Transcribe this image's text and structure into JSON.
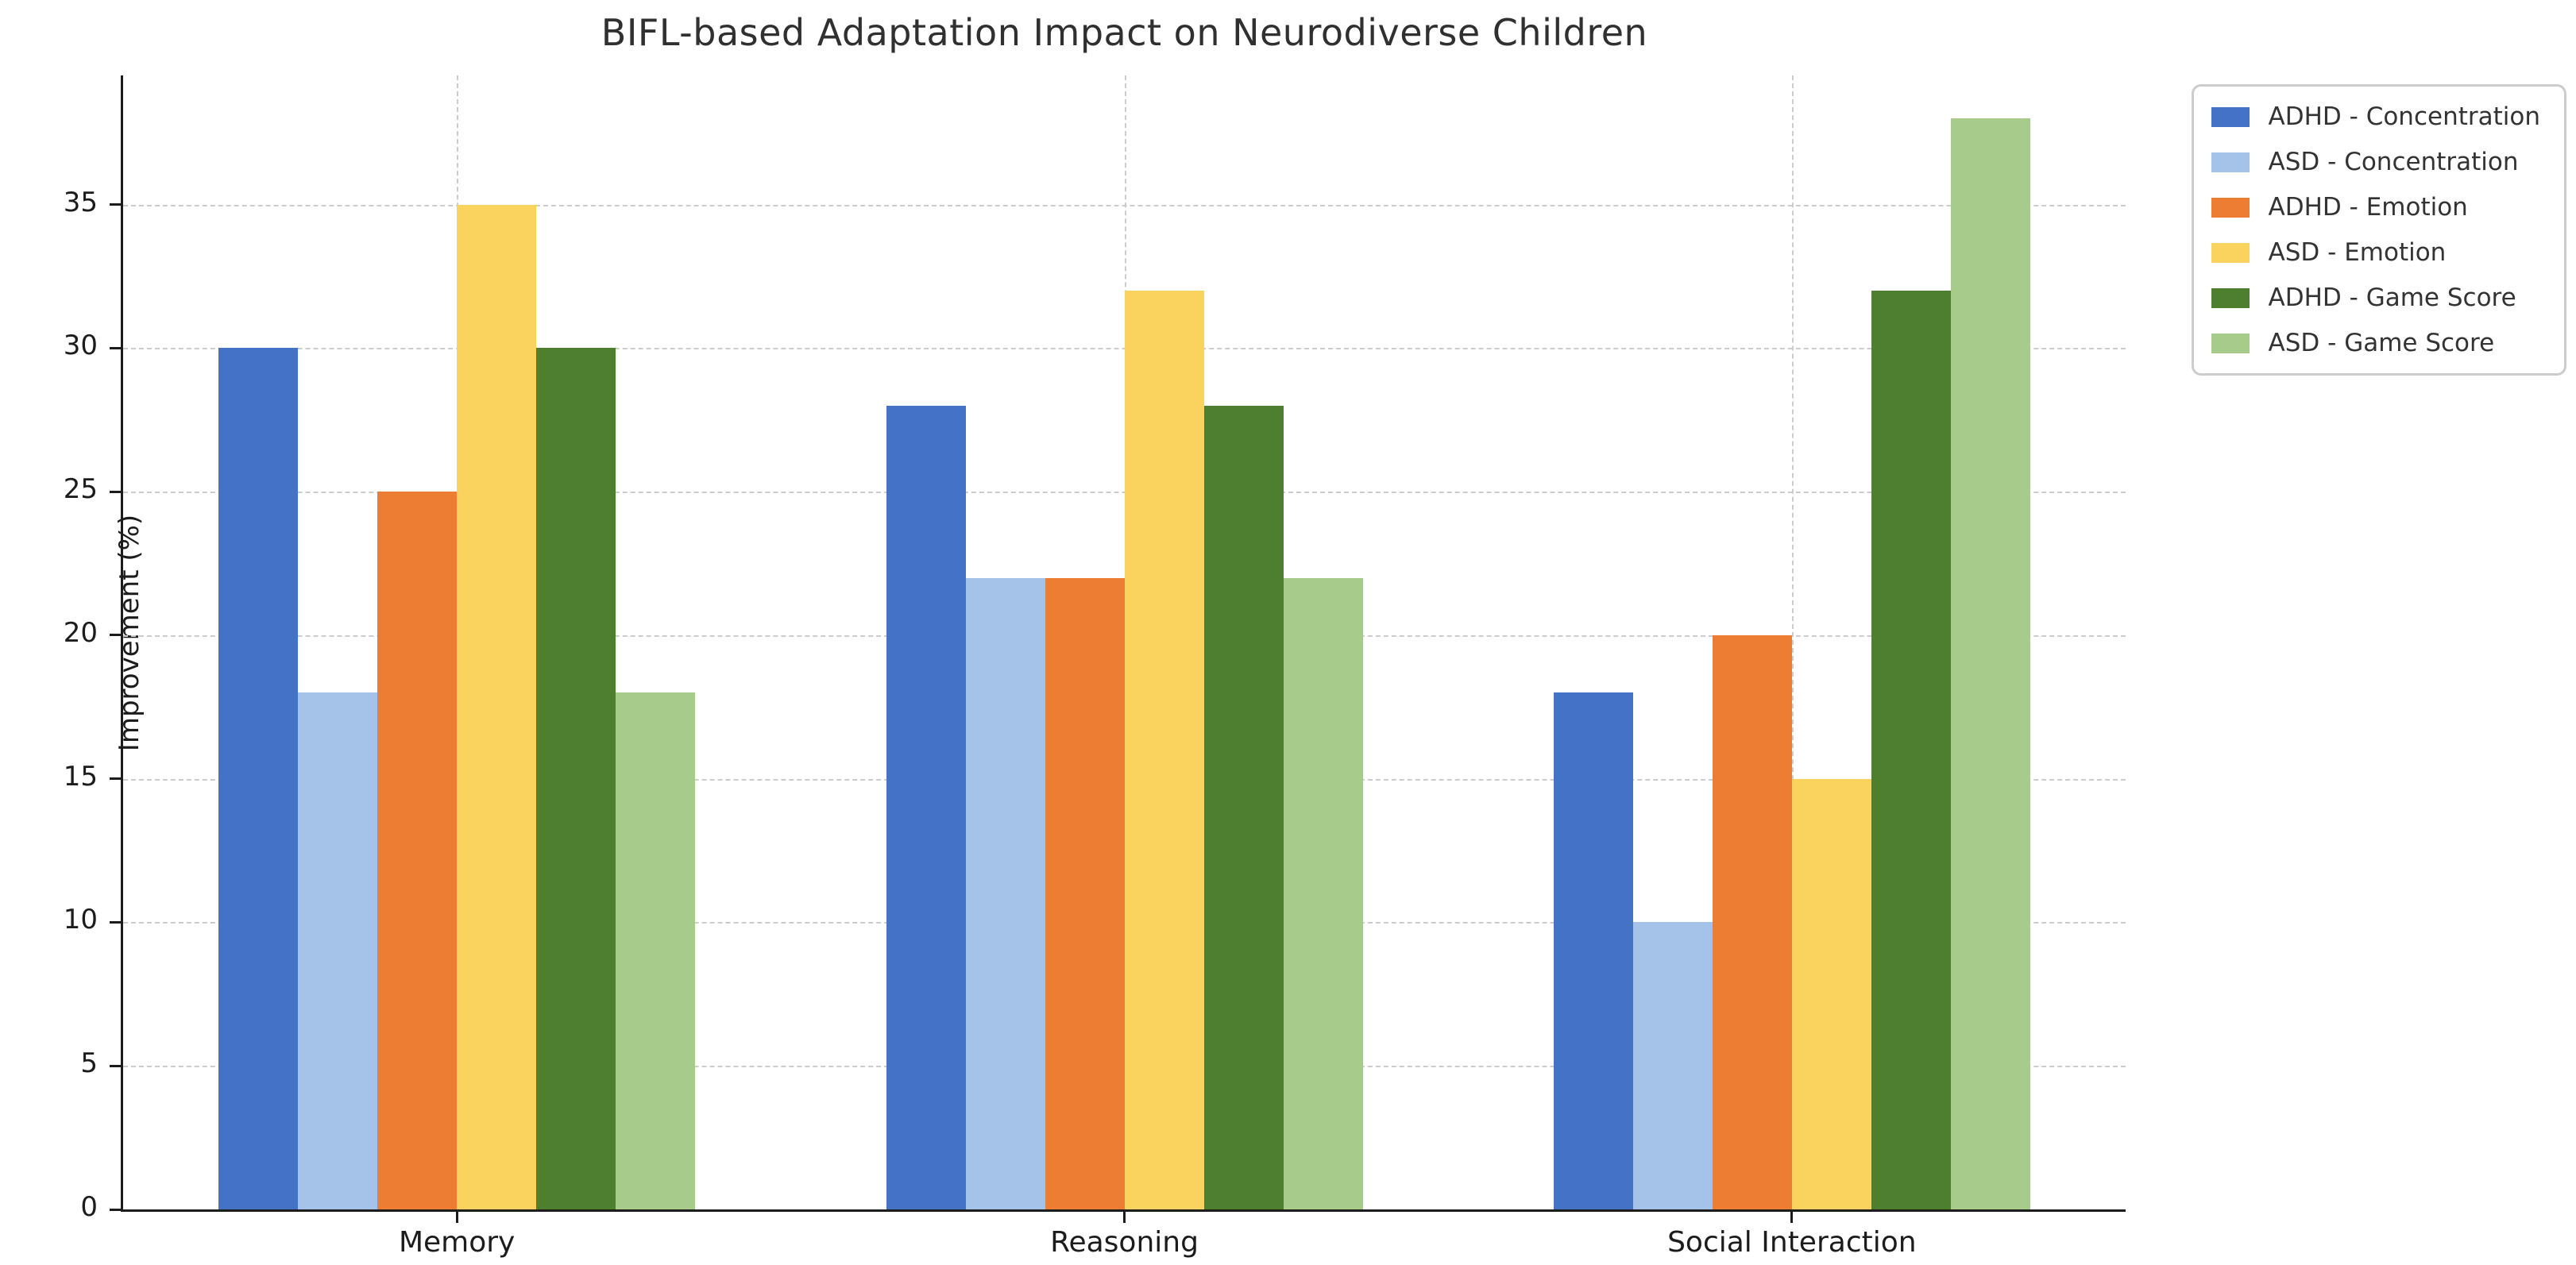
{
  "chart_data": {
    "type": "bar",
    "title": "BIFL-based Adaptation Impact on Neurodiverse Children",
    "xlabel": "",
    "ylabel": "Improvement (%)",
    "categories": [
      "Memory",
      "Reasoning",
      "Social Interaction"
    ],
    "series": [
      {
        "name": "ADHD - Concentration",
        "color": "#4473C5",
        "values": [
          30,
          28,
          18
        ]
      },
      {
        "name": "ASD - Concentration",
        "color": "#A5C3E9",
        "values": [
          18,
          22,
          10
        ]
      },
      {
        "name": "ADHD - Emotion",
        "color": "#EC7D33",
        "values": [
          25,
          22,
          20
        ]
      },
      {
        "name": "ASD - Emotion",
        "color": "#FAD35E",
        "values": [
          35,
          32,
          15
        ]
      },
      {
        "name": "ADHD - Game Score",
        "color": "#4D7F2F",
        "values": [
          30,
          28,
          32
        ]
      },
      {
        "name": "ASD - Game Score",
        "color": "#A7CB8B",
        "values": [
          18,
          22,
          38
        ]
      }
    ],
    "yticks": [
      0,
      5,
      10,
      15,
      20,
      25,
      30,
      35
    ],
    "ylim": [
      0,
      39.5
    ],
    "grid": true,
    "grid_style": "dashed",
    "legend_position": "upper right",
    "colors": {
      "spine": "#1c1c1c",
      "gridline": "#cccccc",
      "title_text": "#303030",
      "tick_text": "#1c1c1c",
      "legend_text": "#333333",
      "legend_border": "#cccccc",
      "background": "#ffffff"
    }
  }
}
